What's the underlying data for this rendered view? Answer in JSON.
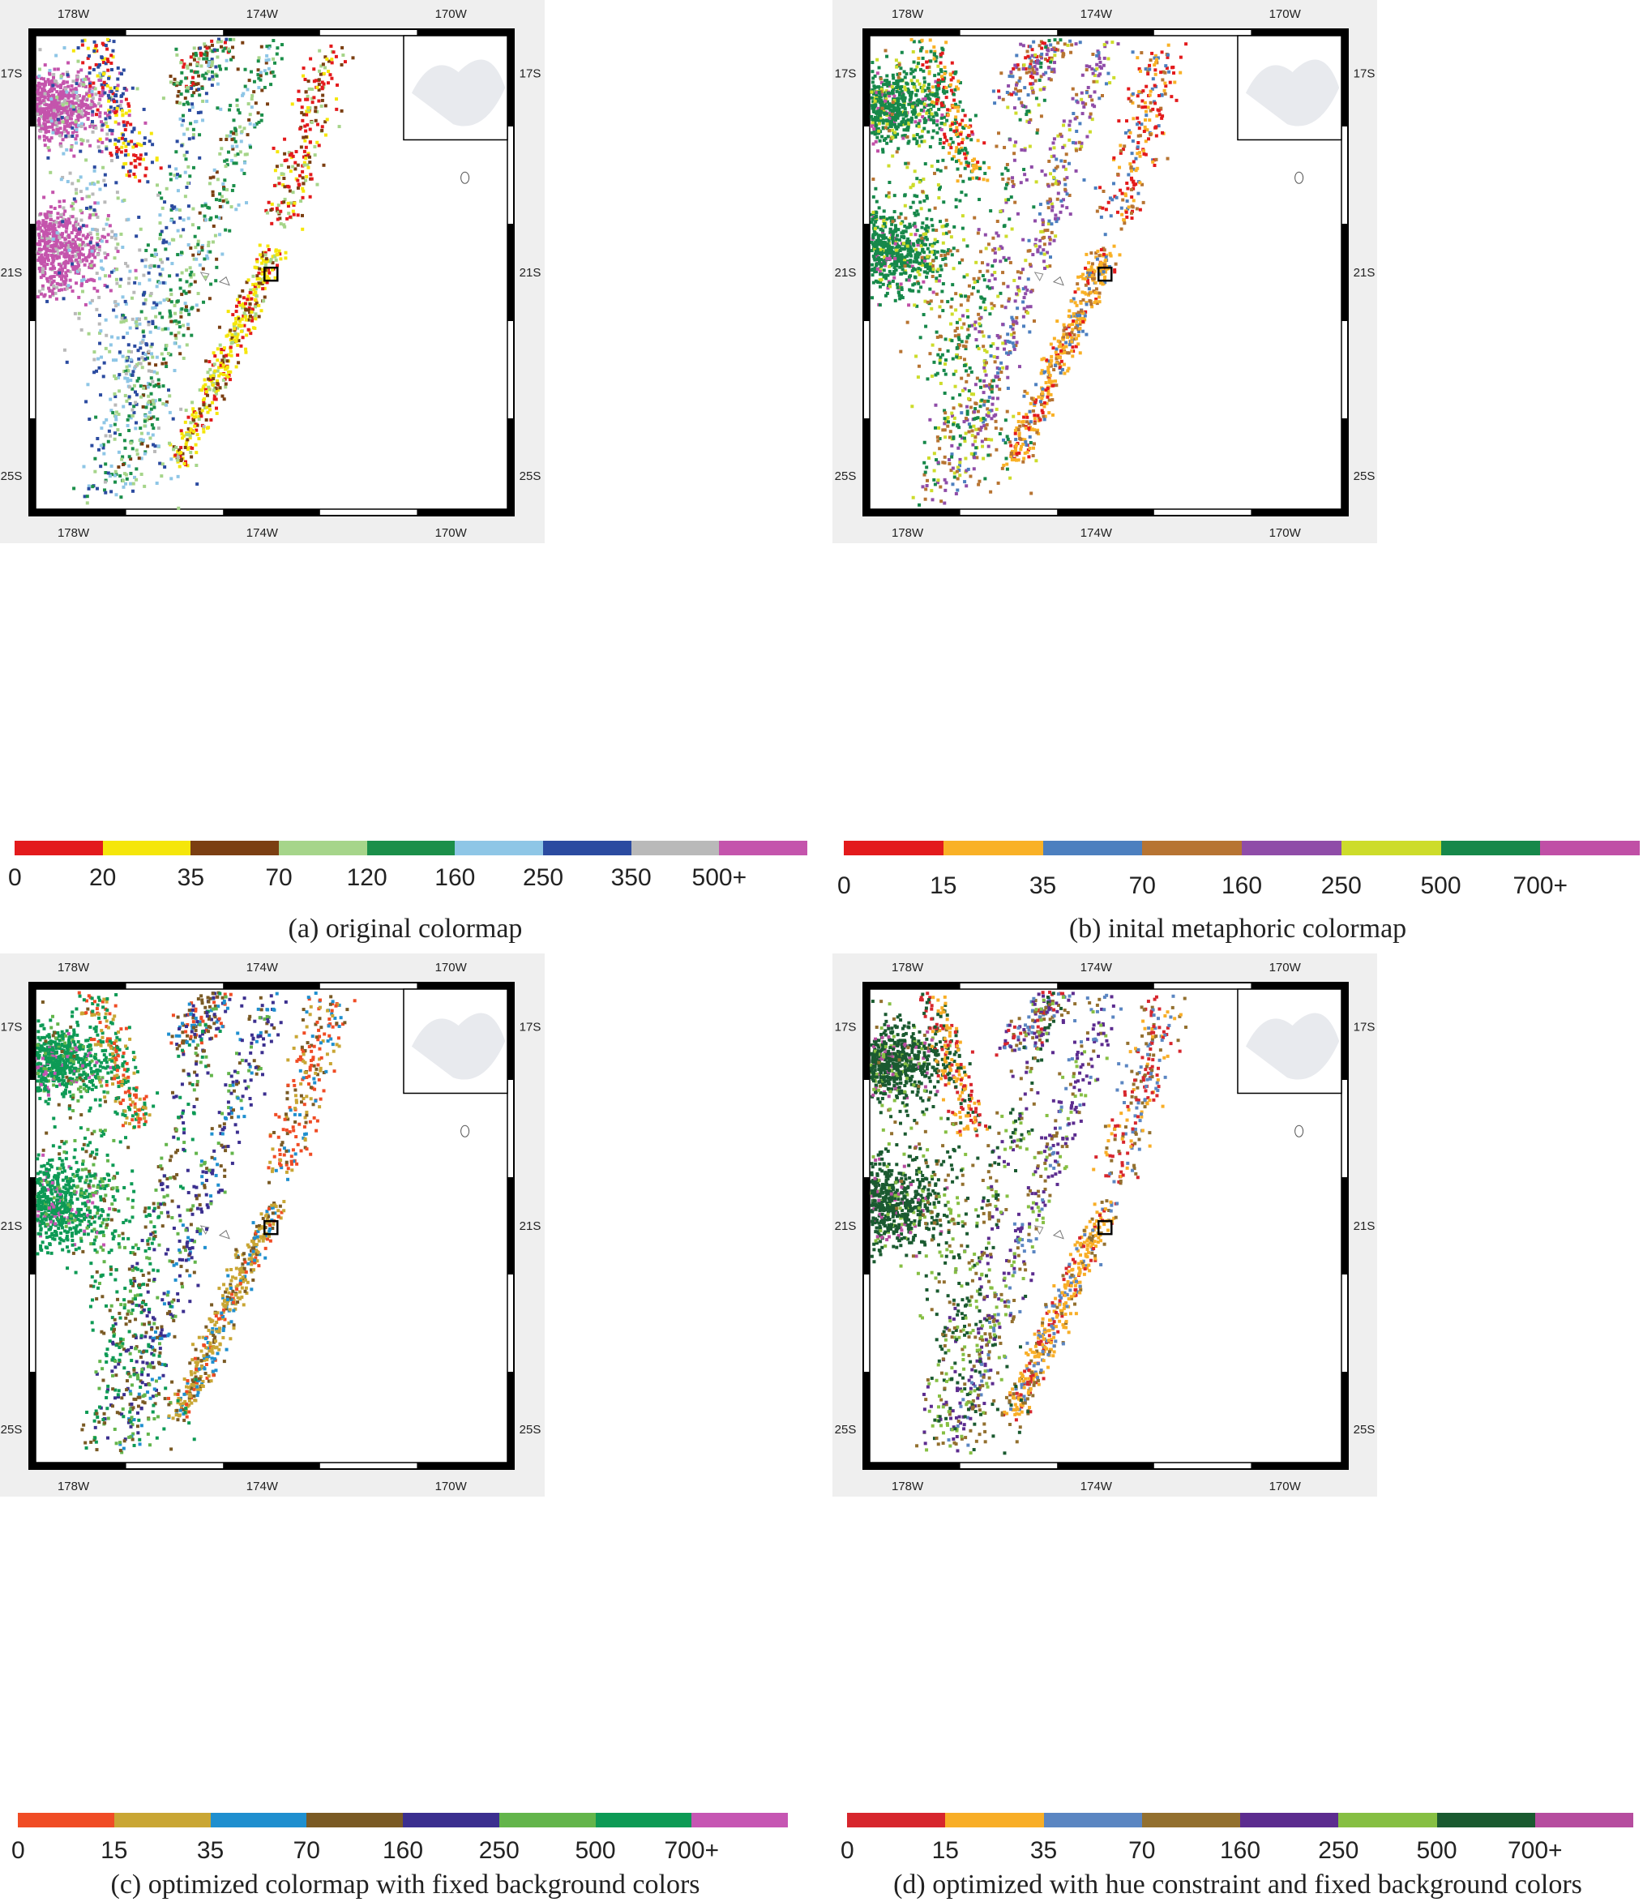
{
  "axis_labels": {
    "top_lon": [
      "178W",
      "174W",
      "170W"
    ],
    "bottom_lon": [
      "178W",
      "174W",
      "170W"
    ],
    "left_lat": [
      "17S",
      "21S",
      "25S"
    ],
    "right_lat": [
      "17S",
      "21S",
      "25S"
    ]
  },
  "panels": [
    {
      "caption": "(a) original colormap",
      "colors": [
        "#e31a1c",
        "#f5e60a",
        "#7b3f12",
        "#a6d58a",
        "#1b8f4a",
        "#8ec6e6",
        "#2b4ba0",
        "#b9b9b9",
        "#c454ac"
      ],
      "labels": [
        "0",
        "20",
        "35",
        "70",
        "120",
        "160",
        "250",
        "350",
        "500+"
      ]
    },
    {
      "caption": "(b) inital metaphoric colormap",
      "colors": [
        "#e31a1c",
        "#f9b126",
        "#4c7fbf",
        "#b77432",
        "#8f4ca8",
        "#cddc2b",
        "#16884a",
        "#c04fa6"
      ],
      "labels": [
        "0",
        "15",
        "35",
        "70",
        "160",
        "250",
        "500",
        "700+"
      ]
    },
    {
      "caption": "(c) optimized colormap with fixed background colors",
      "colors": [
        "#f04c25",
        "#c9a634",
        "#1f8fcf",
        "#7a5a24",
        "#3b2f8f",
        "#63b54b",
        "#0d9a55",
        "#c656b3"
      ],
      "labels": [
        "0",
        "15",
        "35",
        "70",
        "160",
        "250",
        "500",
        "700+"
      ]
    },
    {
      "caption": "(d) optimized with hue constraint and fixed background colors",
      "colors": [
        "#d7262d",
        "#f8ae27",
        "#5b86c2",
        "#93702f",
        "#5c2c8f",
        "#86bf43",
        "#1a5a30",
        "#b64d9f"
      ],
      "labels": [
        "0",
        "15",
        "35",
        "70",
        "160",
        "250",
        "500",
        "700+"
      ]
    }
  ]
}
